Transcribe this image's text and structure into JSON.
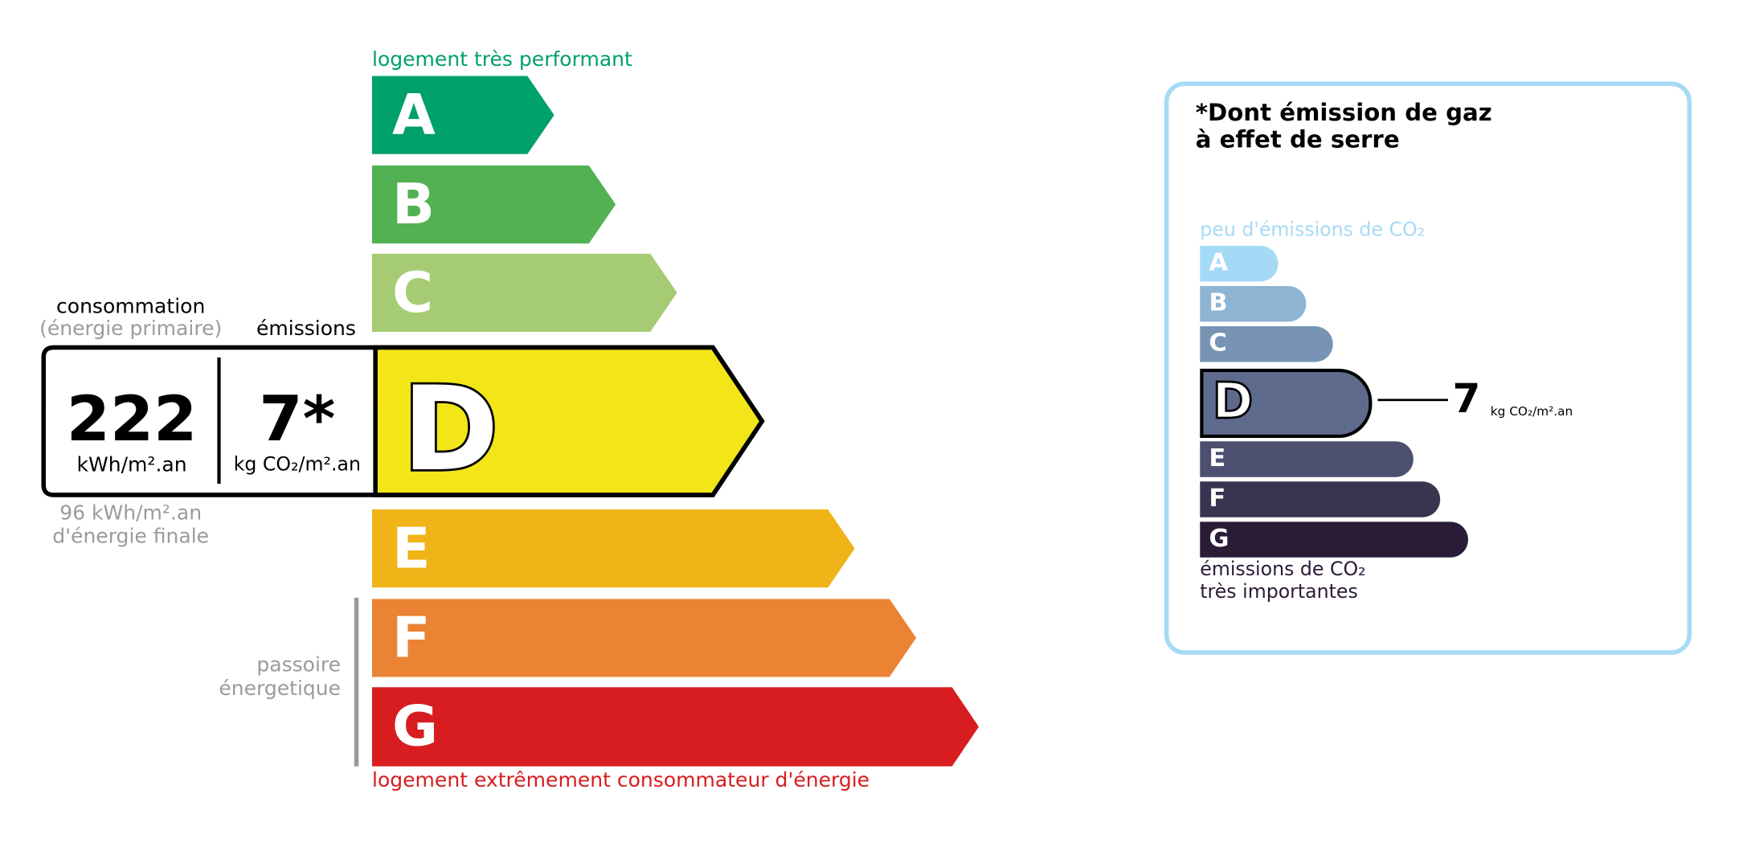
{
  "energy": {
    "top_label": "logement très performant",
    "bottom_label": "logement extrêmement consommateur d'énergie",
    "classes": [
      {
        "letter": "A",
        "color": "#00a06a"
      },
      {
        "letter": "B",
        "color": "#51b153"
      },
      {
        "letter": "C",
        "color": "#a5cc74"
      },
      {
        "letter": "D",
        "color": "#f2e619"
      },
      {
        "letter": "E",
        "color": "#f0b418"
      },
      {
        "letter": "F",
        "color": "#eb8334"
      },
      {
        "letter": "G",
        "color": "#d71d20"
      }
    ],
    "current_class": "D",
    "consumption_label": "consommation",
    "consumption_sublabel": "(énergie primaire)",
    "emissions_label": "émissions",
    "consumption_value": "222",
    "consumption_unit": "kWh/m².an",
    "emissions_value": "7*",
    "emissions_unit": "kg CO₂/m².an",
    "final_energy_value": "96 kWh/m².an",
    "final_energy_label": "d'énergie finale",
    "passoire_line1": "passoire",
    "passoire_line2": "énergetique"
  },
  "ges": {
    "title_line1": "*Dont émission de gaz",
    "title_line2": "à effet de serre",
    "top_label": "peu d'émissions de CO₂",
    "bottom_label_line1": "émissions de CO₂",
    "bottom_label_line2": "très importantes",
    "classes": [
      {
        "letter": "A",
        "color": "#a4daf6"
      },
      {
        "letter": "B",
        "color": "#8db4d3"
      },
      {
        "letter": "C",
        "color": "#7794b4"
      },
      {
        "letter": "D",
        "color": "#5e6b8c"
      },
      {
        "letter": "E",
        "color": "#4c4f6f"
      },
      {
        "letter": "F",
        "color": "#383551"
      },
      {
        "letter": "G",
        "color": "#2a1b37"
      }
    ],
    "current_class": "D",
    "value": "7",
    "unit": "kg CO₂/m².an",
    "border_color": "#a6daf5"
  }
}
